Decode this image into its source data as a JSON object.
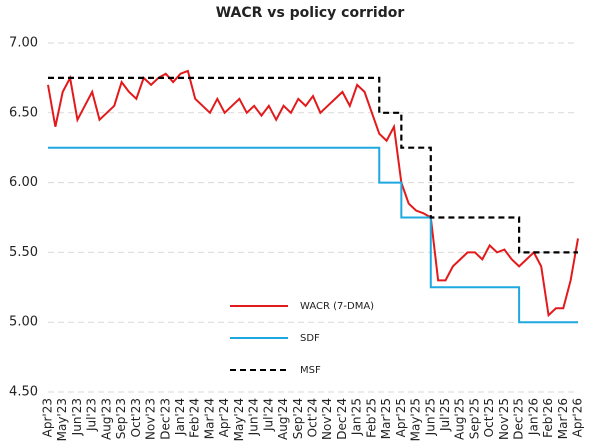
{
  "chart_data": {
    "type": "line",
    "title": "WACR vs policy corridor",
    "categories": [
      "Apr'23",
      null,
      "May'23",
      null,
      "Jun'23",
      null,
      "Jul'23",
      null,
      "Aug'23",
      null,
      "Sep'23",
      null,
      "Oct'23",
      null,
      "Nov'23",
      null,
      "Dec'23",
      null,
      "Jan'24",
      null,
      "Feb'24",
      null,
      "Mar'24",
      null,
      "Apr'24",
      null,
      "May'24",
      null,
      "Jun'24",
      null,
      "Jul'24",
      null,
      "Aug'24",
      null,
      "Sep'24",
      null,
      "Oct'24",
      null,
      "Nov'24",
      null,
      "Dec'24",
      null,
      "Jan'25",
      null,
      "Feb'25",
      null,
      "Mar'25",
      null,
      "Apr'25",
      null,
      "May'25",
      null,
      "Jun'25",
      null,
      "Jul'25",
      null,
      "Aug'25",
      null,
      "Sep'25",
      null,
      "Oct'25",
      null,
      "Nov'25",
      null,
      "Dec'25",
      null,
      "Jan'26",
      null,
      "Feb'26",
      null,
      "Mar'26",
      null,
      "Apr'26"
    ],
    "series": [
      {
        "name": "WACR (7-DMA)",
        "color": "#e31a1c",
        "values": [
          6.7,
          6.4,
          6.65,
          6.75,
          6.45,
          6.55,
          6.65,
          6.45,
          6.5,
          6.55,
          6.72,
          6.65,
          6.6,
          6.75,
          6.7,
          6.75,
          6.78,
          6.72,
          6.78,
          6.8,
          6.6,
          6.55,
          6.5,
          6.6,
          6.5,
          6.55,
          6.6,
          6.5,
          6.55,
          6.48,
          6.55,
          6.45,
          6.55,
          6.5,
          6.6,
          6.55,
          6.62,
          6.5,
          6.55,
          6.6,
          6.65,
          6.55,
          6.7,
          6.65,
          6.5,
          6.35,
          6.3,
          6.4,
          6.0,
          5.85,
          5.8,
          5.78,
          5.75,
          5.3,
          5.3,
          5.4,
          5.45,
          5.5,
          5.5,
          5.45,
          5.55,
          5.5,
          5.52,
          5.45,
          5.4,
          5.45,
          5.5,
          5.4,
          5.05,
          5.1,
          5.1,
          5.3,
          5.6
        ]
      },
      {
        "name": "SDF",
        "color": "#1fa8e0",
        "step": true,
        "values": [
          6.25,
          6.25,
          6.25,
          6.25,
          6.25,
          6.25,
          6.25,
          6.25,
          6.25,
          6.25,
          6.25,
          6.25,
          6.25,
          6.25,
          6.25,
          6.25,
          6.25,
          6.25,
          6.25,
          6.25,
          6.25,
          6.25,
          6.25,
          6.25,
          6.25,
          6.25,
          6.25,
          6.25,
          6.25,
          6.25,
          6.25,
          6.25,
          6.25,
          6.25,
          6.25,
          6.25,
          6.25,
          6.25,
          6.25,
          6.25,
          6.25,
          6.25,
          6.25,
          6.25,
          6.25,
          6.0,
          6.0,
          6.0,
          5.75,
          5.75,
          5.75,
          5.75,
          5.25,
          5.25,
          5.25,
          5.25,
          5.25,
          5.25,
          5.25,
          5.25,
          5.25,
          5.25,
          5.25,
          5.25,
          5.0,
          5.0,
          5.0,
          5.0,
          5.0,
          5.0,
          5.0,
          5.0,
          5.0
        ]
      },
      {
        "name": "MSF",
        "color": "#000000",
        "step": true,
        "dashed": true,
        "values": [
          6.75,
          6.75,
          6.75,
          6.75,
          6.75,
          6.75,
          6.75,
          6.75,
          6.75,
          6.75,
          6.75,
          6.75,
          6.75,
          6.75,
          6.75,
          6.75,
          6.75,
          6.75,
          6.75,
          6.75,
          6.75,
          6.75,
          6.75,
          6.75,
          6.75,
          6.75,
          6.75,
          6.75,
          6.75,
          6.75,
          6.75,
          6.75,
          6.75,
          6.75,
          6.75,
          6.75,
          6.75,
          6.75,
          6.75,
          6.75,
          6.75,
          6.75,
          6.75,
          6.75,
          6.75,
          6.5,
          6.5,
          6.5,
          6.25,
          6.25,
          6.25,
          6.25,
          5.75,
          5.75,
          5.75,
          5.75,
          5.75,
          5.75,
          5.75,
          5.75,
          5.75,
          5.75,
          5.75,
          5.75,
          5.5,
          5.5,
          5.5,
          5.5,
          5.5,
          5.5,
          5.5,
          5.5,
          5.5
        ]
      }
    ],
    "ylim": [
      4.5,
      7.0
    ],
    "yticks": [
      {
        "value": 4.5,
        "label": "4.50"
      },
      {
        "value": 5.0,
        "label": "5.00"
      },
      {
        "value": 5.5,
        "label": "5.50"
      },
      {
        "value": 6.0,
        "label": "6.00"
      },
      {
        "value": 6.5,
        "label": "6.50"
      },
      {
        "value": 7.0,
        "label": "7.00"
      }
    ],
    "grid": true
  }
}
